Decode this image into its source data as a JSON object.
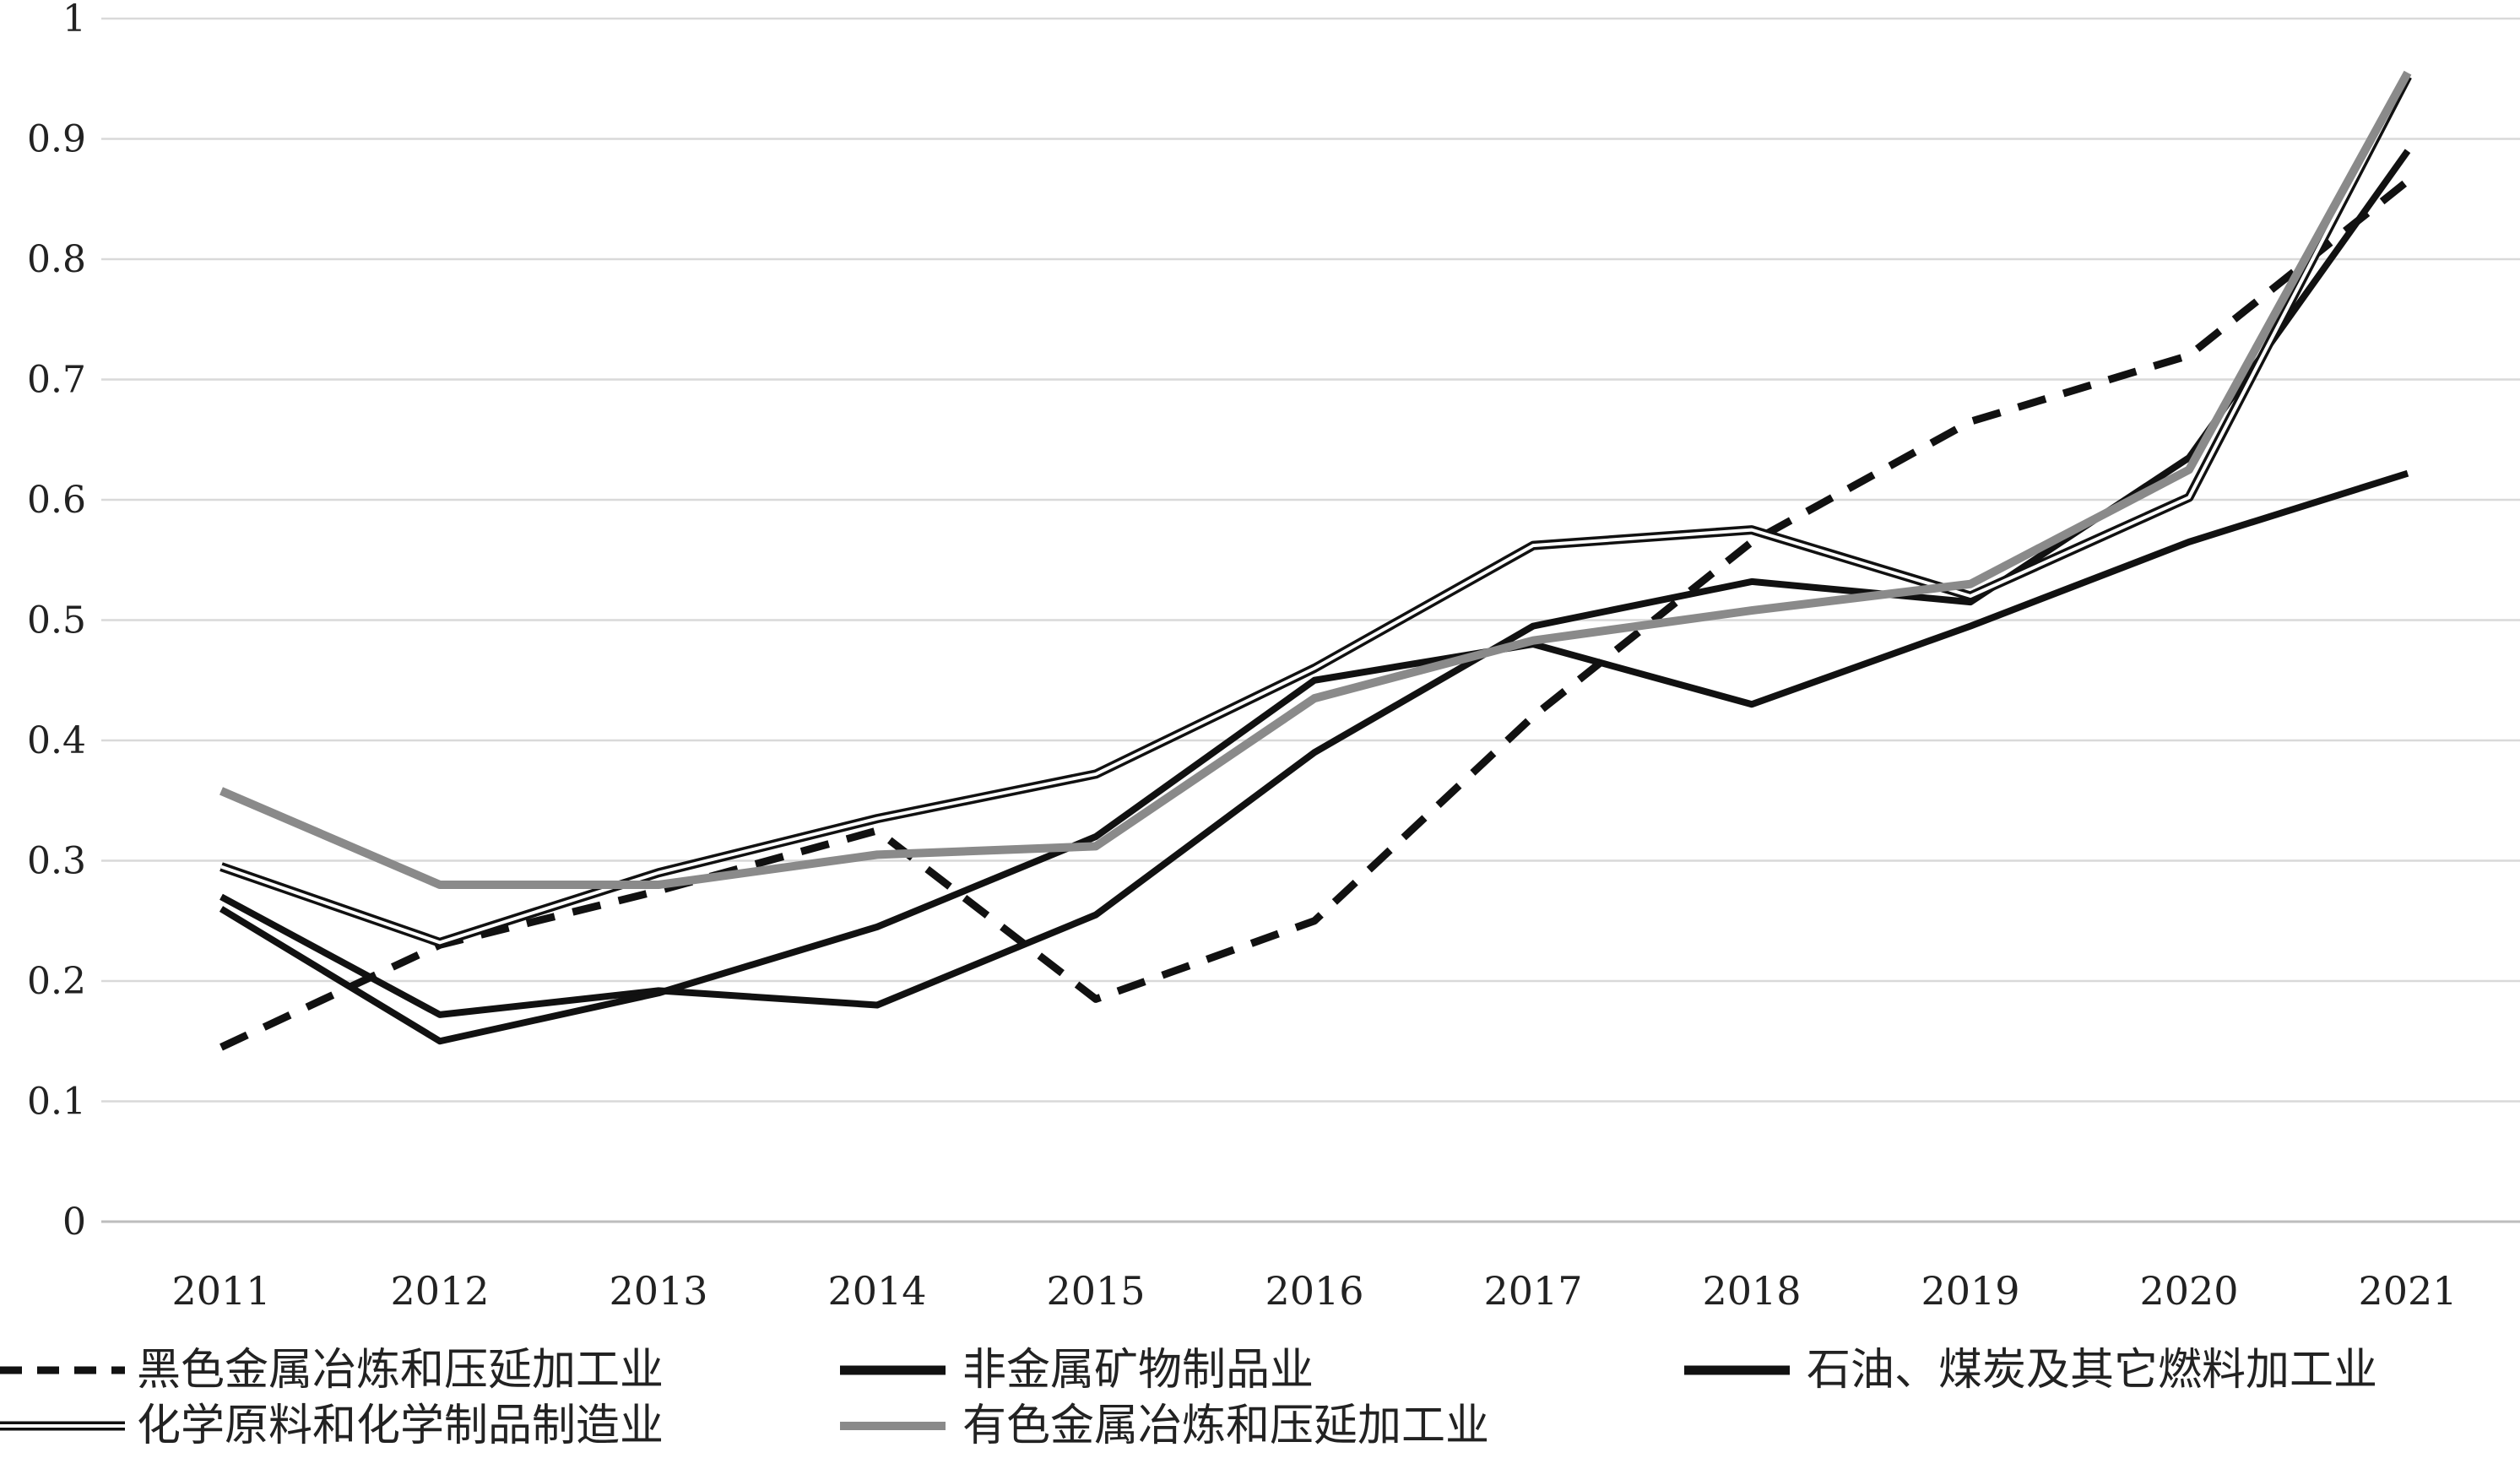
{
  "chart_data": {
    "type": "line",
    "title": "",
    "xlabel": "",
    "ylabel": "",
    "ylim": [
      0,
      1
    ],
    "yticks": [
      "0",
      "0.1",
      "0.2",
      "0.3",
      "0.4",
      "0.5",
      "0.6",
      "0.7",
      "0.8",
      "0.9",
      "1"
    ],
    "categories": [
      "2011",
      "2012",
      "2013",
      "2014",
      "2015",
      "2016",
      "2017",
      "2018",
      "2019",
      "2020",
      "2021"
    ],
    "grid": true,
    "legend_position": "bottom",
    "series": [
      {
        "name": "黑色金属冶炼和压延加工业",
        "style": "dashed-black",
        "color": "#111111",
        "values": [
          0.145,
          0.23,
          0.275,
          0.325,
          0.185,
          0.25,
          0.42,
          0.565,
          0.665,
          0.72,
          0.865
        ]
      },
      {
        "name": "非金属矿物制品业",
        "style": "solid-black",
        "color": "#111111",
        "values": [
          0.27,
          0.172,
          0.192,
          0.18,
          0.255,
          0.39,
          0.495,
          0.532,
          0.515,
          0.635,
          0.89
        ]
      },
      {
        "name": "石油、煤炭及其它燃料加工业",
        "style": "solid-black",
        "color": "#111111",
        "values": [
          0.26,
          0.15,
          0.19,
          0.245,
          0.32,
          0.45,
          0.48,
          0.43,
          0.495,
          0.565,
          0.622
        ]
      },
      {
        "name": "化学原料和化学制品制造业",
        "style": "double-black",
        "color": "#111111",
        "values": [
          0.295,
          0.232,
          0.29,
          0.335,
          0.372,
          0.46,
          0.562,
          0.575,
          0.52,
          0.602,
          0.952
        ]
      },
      {
        "name": "有色金属冶炼和压延加工业",
        "style": "solid-gray",
        "color": "#8a8a8a",
        "values": [
          0.358,
          0.28,
          0.28,
          0.305,
          0.312,
          0.435,
          0.483,
          0.508,
          0.53,
          0.625,
          0.955
        ]
      }
    ]
  }
}
